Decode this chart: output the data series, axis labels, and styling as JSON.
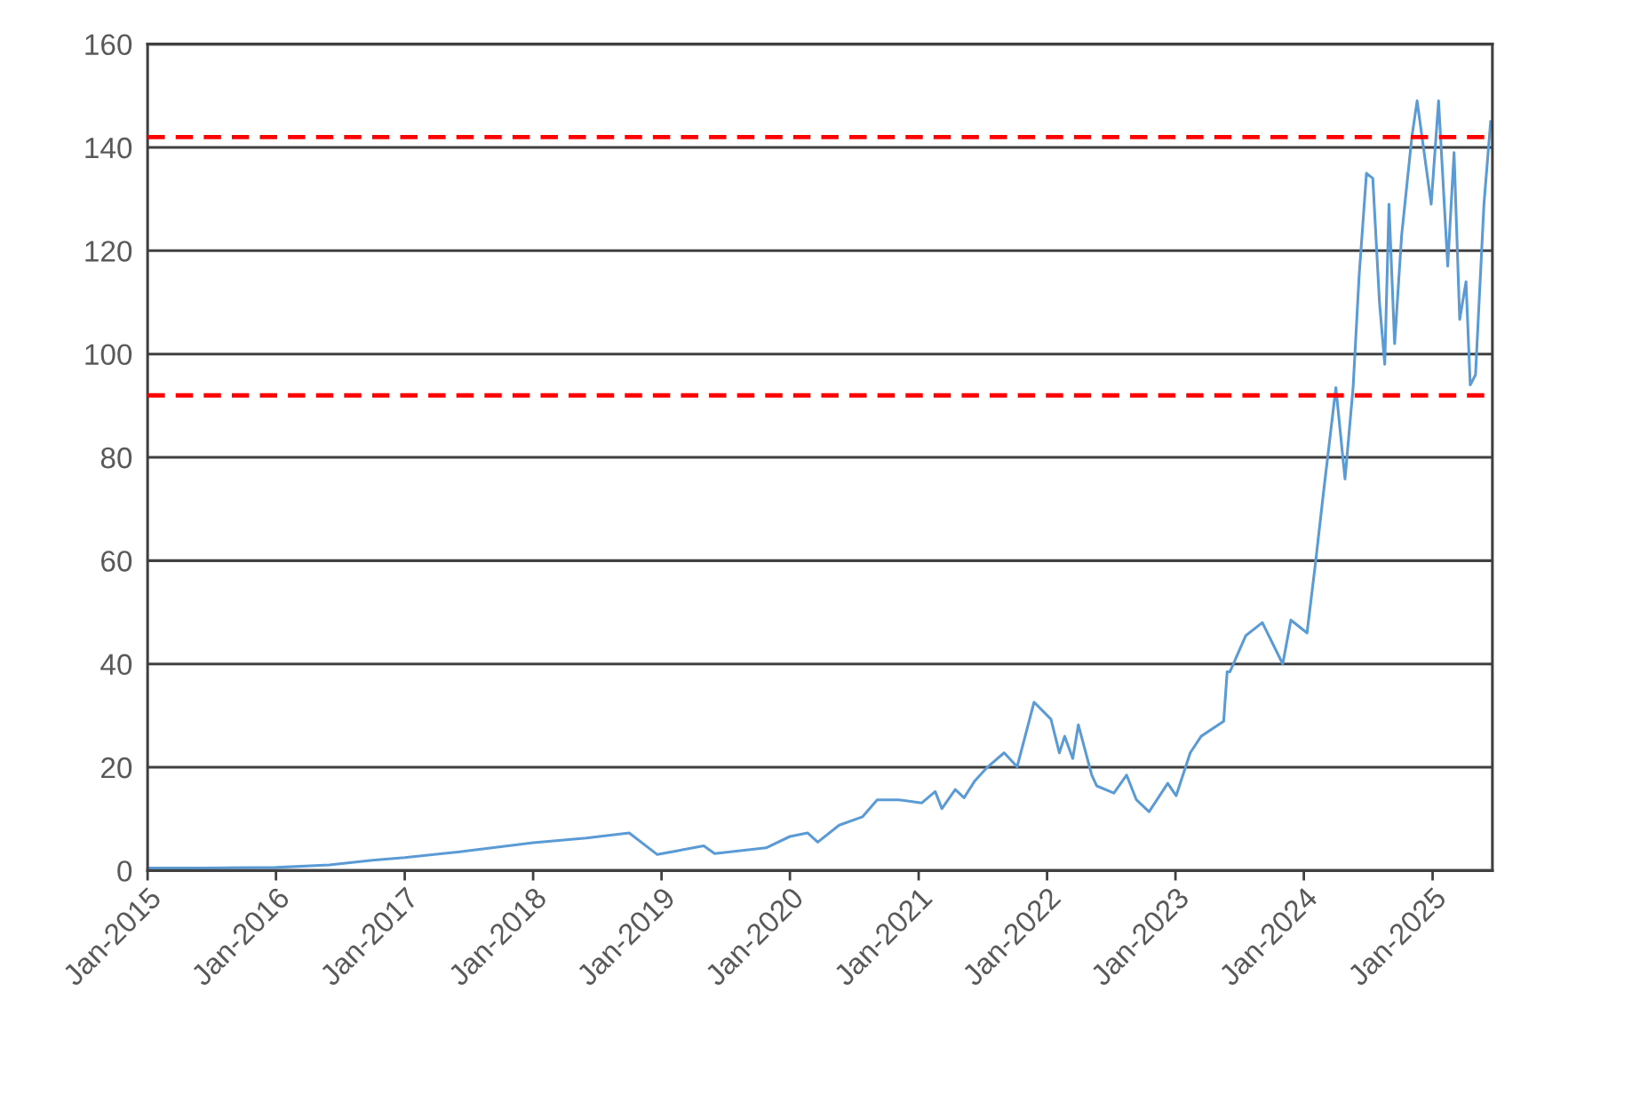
{
  "chart_data": {
    "type": "line",
    "x": [
      "2015-01-01",
      "2015-06-01",
      "2016-01-01",
      "2016-06-01",
      "2016-10-01",
      "2017-01-01",
      "2017-06-01",
      "2018-01-01",
      "2018-06-01",
      "2018-10-01",
      "2018-12-20",
      "2019-03-01",
      "2019-05-01",
      "2019-06-01",
      "2019-10-25",
      "2020-01-01",
      "2020-02-20",
      "2020-03-20",
      "2020-05-20",
      "2020-07-25",
      "2020-09-05",
      "2020-11-05",
      "2021-01-10",
      "2021-02-17",
      "2021-03-08",
      "2021-04-15",
      "2021-05-10",
      "2021-06-10",
      "2021-07-15",
      "2021-09-01",
      "2021-10-08",
      "2021-11-25",
      "2022-01-12",
      "2022-02-05",
      "2022-02-20",
      "2022-03-15",
      "2022-03-31",
      "2022-05-08",
      "2022-05-22",
      "2022-07-10",
      "2022-08-15",
      "2022-09-12",
      "2022-10-18",
      "2022-12-10",
      "2023-01-03",
      "2023-02-12",
      "2023-03-15",
      "2023-05-18",
      "2023-05-28",
      "2023-06-05",
      "2023-07-20",
      "2023-09-05",
      "2023-11-02",
      "2023-11-25",
      "2024-01-10",
      "2024-02-03",
      "2024-02-25",
      "2024-04-01",
      "2024-04-27",
      "2024-05-20",
      "2024-06-06",
      "2024-06-27",
      "2024-07-15",
      "2024-08-03",
      "2024-08-18",
      "2024-08-30",
      "2024-09-15",
      "2024-10-05",
      "2024-11-03",
      "2024-11-18",
      "2024-12-28",
      "2025-01-18",
      "2025-02-13",
      "2025-03-03",
      "2025-03-19",
      "2025-04-06",
      "2025-04-18",
      "2025-05-03",
      "2025-05-27",
      "2025-06-15"
    ],
    "series": [
      {
        "color": "#5b9bd5",
        "values": [
          0.5,
          0.5,
          0.6,
          1.1,
          2.0,
          2.5,
          3.6,
          5.4,
          6.3,
          7.3,
          3.1,
          4.0,
          4.8,
          3.3,
          4.4,
          6.6,
          7.3,
          5.5,
          8.8,
          10.4,
          13.7,
          13.7,
          13.1,
          15.3,
          12,
          15.7,
          14.1,
          17.4,
          20,
          22.8,
          20.1,
          32.6,
          29.3,
          22.8,
          26,
          21.7,
          28.2,
          18.5,
          16.4,
          15,
          18.5,
          13.7,
          11.4,
          16.9,
          14.5,
          22.8,
          26,
          28.9,
          38.5,
          38.5,
          45.5,
          48,
          40,
          48.5,
          46,
          59.5,
          72.7,
          93.5,
          75.8,
          93.5,
          115,
          135,
          134,
          110,
          98,
          129,
          102,
          123,
          142,
          149,
          129,
          149,
          117,
          139,
          106.7,
          114,
          94,
          96,
          129,
          145
        ]
      }
    ],
    "xlim": [
      "2015-01-01",
      "2025-06-20"
    ],
    "xticks": [
      {
        "value": "2015-01-01",
        "label": "Jan-2015"
      },
      {
        "value": "2016-01-01",
        "label": "Jan-2016"
      },
      {
        "value": "2017-01-01",
        "label": "Jan-2017"
      },
      {
        "value": "2018-01-01",
        "label": "Jan-2018"
      },
      {
        "value": "2019-01-01",
        "label": "Jan-2019"
      },
      {
        "value": "2020-01-01",
        "label": "Jan-2020"
      },
      {
        "value": "2021-01-01",
        "label": "Jan-2021"
      },
      {
        "value": "2022-01-01",
        "label": "Jan-2022"
      },
      {
        "value": "2023-01-01",
        "label": "Jan-2023"
      },
      {
        "value": "2024-01-01",
        "label": "Jan-2024"
      },
      {
        "value": "2025-01-01",
        "label": "Jan-2025"
      }
    ],
    "ylim": [
      0,
      160
    ],
    "yticks": [
      0,
      20,
      40,
      60,
      80,
      100,
      120,
      140,
      160
    ],
    "grid": "y",
    "ref_lines": [
      {
        "axis": "y",
        "value": 142,
        "color": "#ff0000",
        "line_style": "dashed"
      },
      {
        "axis": "y",
        "value": 92,
        "color": "#ff0000",
        "line_style": "dashed"
      }
    ]
  }
}
